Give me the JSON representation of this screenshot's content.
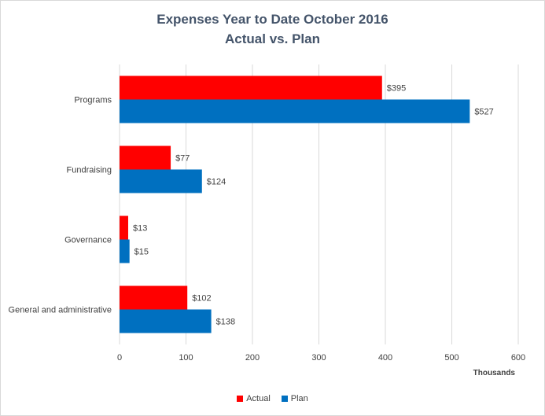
{
  "chart_data": {
    "type": "bar",
    "orientation": "horizontal",
    "title": "Expenses Year to Date October 2016",
    "subtitle": "Actual vs. Plan",
    "categories": [
      "Programs",
      "Fundraising",
      "Governance",
      "General and administrative"
    ],
    "series": [
      {
        "name": "Actual",
        "color": "#ff0000",
        "values": [
          395,
          77,
          13,
          102
        ],
        "labels": [
          "$395",
          "$77",
          "$13",
          "$102"
        ]
      },
      {
        "name": "Plan",
        "color": "#0070c0",
        "values": [
          527,
          124,
          15,
          138
        ],
        "labels": [
          "$527",
          "$124",
          "$15",
          "$138"
        ]
      }
    ],
    "xlabel": "Thousands",
    "ylabel": "",
    "xlim": [
      0,
      600
    ],
    "xticks": [
      0,
      100,
      200,
      300,
      400,
      500,
      600
    ],
    "xtick_labels": [
      "0",
      "100",
      "200",
      "300",
      "400",
      "500",
      "600"
    ],
    "grid": "vertical",
    "legend": "bottom-center"
  }
}
